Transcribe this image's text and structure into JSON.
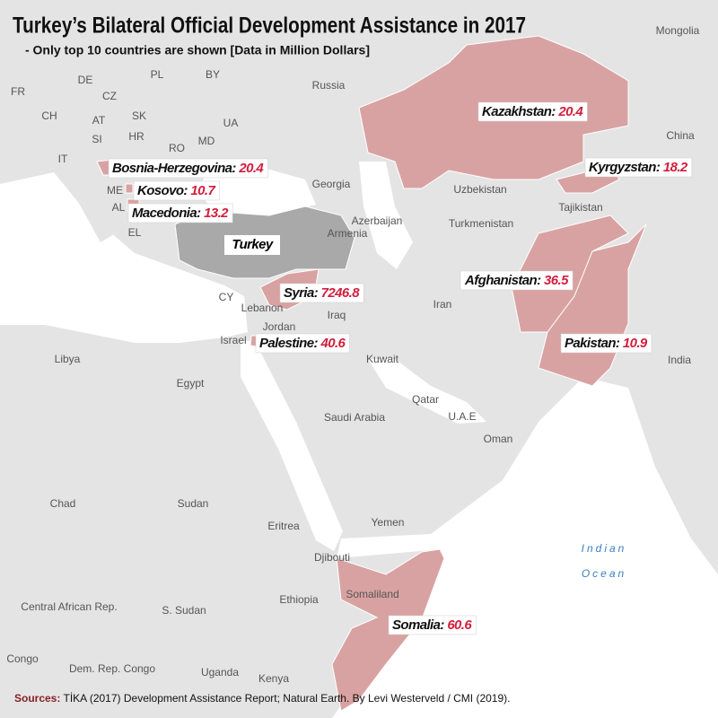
{
  "title": "Turkey’s Bilateral Official Development Assistance in 2017",
  "subtitle": "- Only top 10 countries are shown [Data in Million Dollars]",
  "recipients": [
    {
      "label": "Bosnia-Herzegovina:",
      "value": 20.4
    },
    {
      "label": "Kosovo:",
      "value": 10.7
    },
    {
      "label": "Macedonia:",
      "value": 13.2
    },
    {
      "label": "Kazakhstan:",
      "value": 20.4
    },
    {
      "label": "Kyrgyzstan:",
      "value": 18.2
    },
    {
      "label": "Syria:",
      "value": 7246.8
    },
    {
      "label": "Palestine:",
      "value": 40.6
    },
    {
      "label": "Afghanistan:",
      "value": 36.5
    },
    {
      "label": "Pakistan:",
      "value": 10.9
    },
    {
      "label": "Somalia:",
      "value": 60.6
    }
  ],
  "turkey_label": "Turkey",
  "places": [
    "FR",
    "DE",
    "PL",
    "BY",
    "Russia",
    "Mongolia",
    "CH",
    "AT",
    "CZ",
    "SK",
    "UA",
    "SI",
    "HR",
    "RO",
    "MD",
    "IT",
    "ME",
    "AL",
    "EL",
    "China",
    "Uzbekistan",
    "Tajikistan",
    "Georgia",
    "Azerbaijan",
    "Armenia",
    "Turkmenistan",
    "CY",
    "Lebanon",
    "Iraq",
    "Jordan",
    "Israel",
    "Iran",
    "Libya",
    "Kuwait",
    "India",
    "Egypt",
    "Qatar",
    "U.A.E",
    "Saudi Arabia",
    "Oman",
    "Chad",
    "Sudan",
    "Eritrea",
    "Yemen",
    "Djibouti",
    "Somaliland",
    "Ethiopia",
    "Central African Rep.",
    "S. Sudan",
    "Congo",
    "Dem. Rep. Congo",
    "Uganda",
    "Kenya"
  ],
  "ocean": [
    "Indian",
    "Ocean"
  ],
  "sources": {
    "label": "Sources:",
    "text": "TİKA (2017) Development Assistance Report; Natural Earth. By Levi Westerveld / CMI (2019)."
  }
}
